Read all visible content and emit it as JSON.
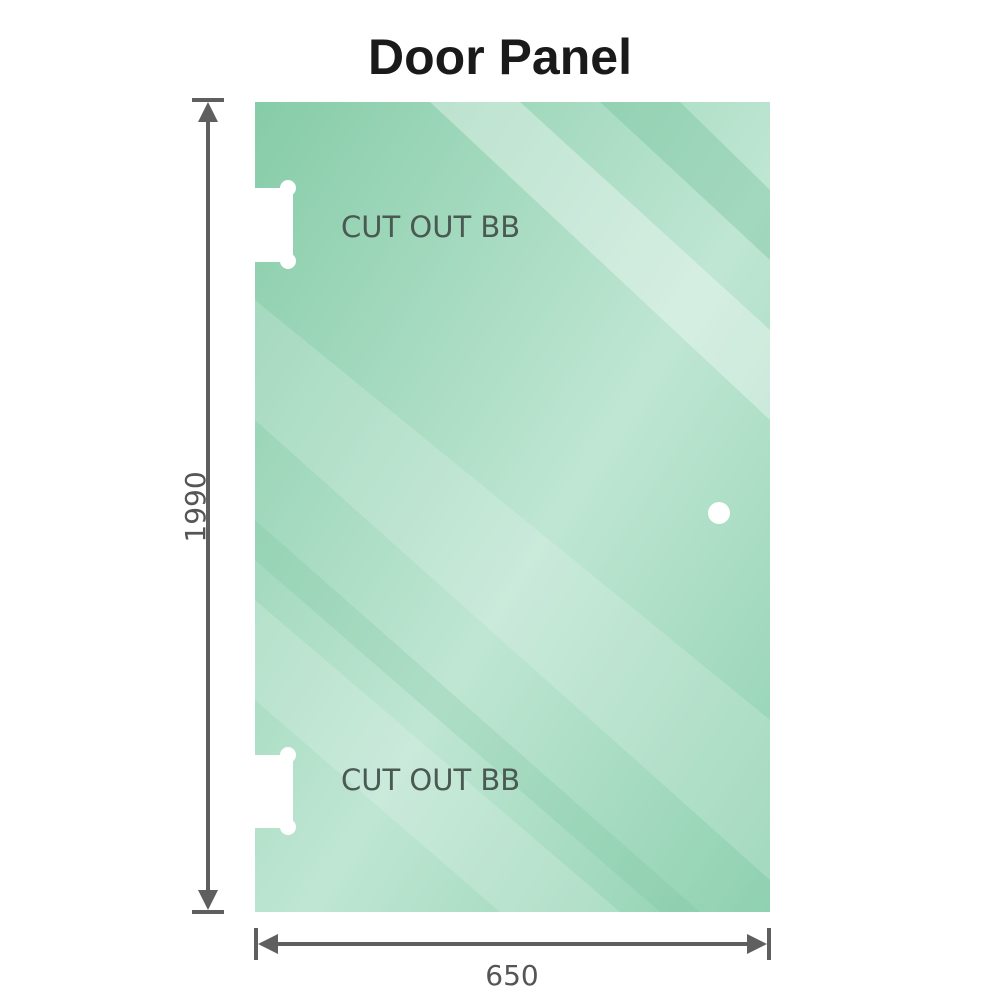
{
  "title": "Door Panel",
  "dimensions": {
    "height": "1990",
    "width": "650"
  },
  "cutouts": [
    {
      "label": "CUT OUT BB"
    },
    {
      "label": "CUT OUT BB"
    }
  ],
  "colors": {
    "glass": "#8fd1b0",
    "glass_highlight": "#c2e8d5",
    "dimension_line": "#5f5f5f"
  }
}
